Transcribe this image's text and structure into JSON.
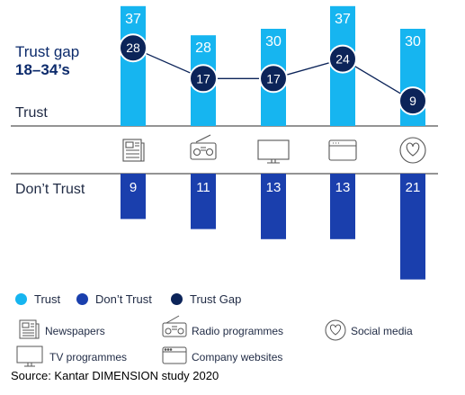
{
  "chart_data": {
    "type": "bar",
    "categories": [
      "Newspapers",
      "Radio programmes",
      "TV programmes",
      "Company websites",
      "Social media"
    ],
    "category_icons": [
      "newspaper-icon",
      "radio-icon",
      "tv-icon",
      "browser-window-icon",
      "heart-icon"
    ],
    "series": [
      {
        "name": "Trust",
        "values": [
          37,
          28,
          30,
          37,
          30
        ],
        "color": "#16b5f0"
      },
      {
        "name": "Don't Trust",
        "values": [
          9,
          11,
          13,
          13,
          21
        ],
        "color": "#1a3fad"
      },
      {
        "name": "Trust Gap",
        "values": [
          28,
          17,
          17,
          24,
          9
        ],
        "color": "#0c2459"
      }
    ],
    "trust_gap_title": "Trust gap",
    "trust_gap_subtitle": "18–34’s",
    "trust_axis_label": "Trust",
    "dont_trust_axis_label": "Don’t Trust",
    "legend_position": "bottom-left",
    "grid": false
  },
  "legend": {
    "series_labels": [
      "Trust",
      "Don’t Trust",
      "Trust Gap"
    ],
    "key_labels": [
      "Newspapers",
      "Radio programmes",
      "Social media",
      "TV programmes",
      "Company websites"
    ]
  },
  "source": "Source: Kantar DIMENSION study 2020"
}
